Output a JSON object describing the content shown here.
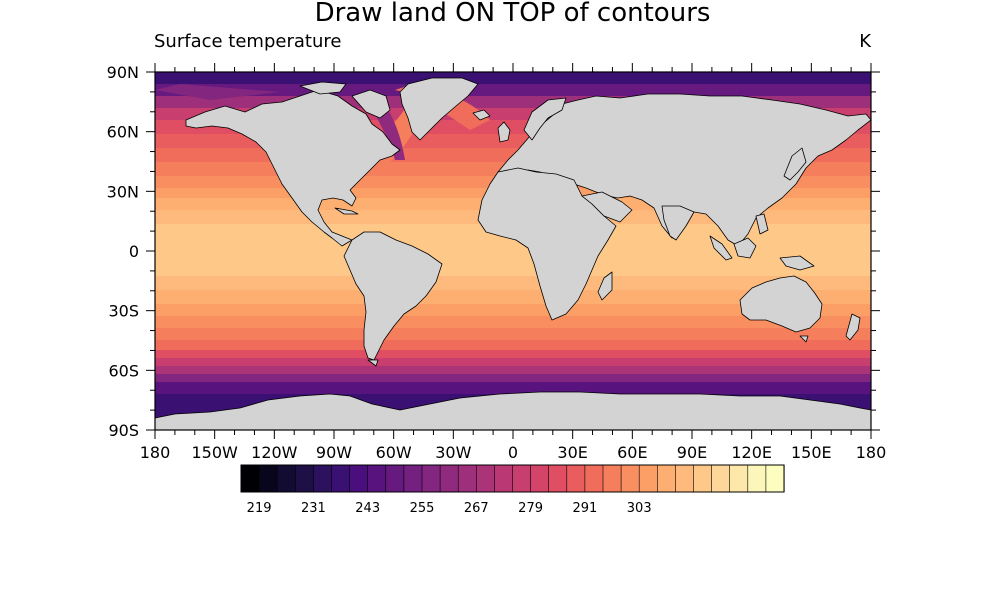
{
  "title": "Draw land ON TOP of contours",
  "left_string": "Surface temperature",
  "right_string": "K",
  "colors": {
    "land": "#d3d3d3",
    "coast": "#000000",
    "palette": [
      "#000004",
      "#07061c",
      "#120c33",
      "#1e1047",
      "#2b115e",
      "#3a1072",
      "#4a0f7d",
      "#58137e",
      "#661a80",
      "#732080",
      "#82267f",
      "#8f2a7e",
      "#9e2f7a",
      "#ab3377",
      "#ba3873",
      "#c83e6e",
      "#d44468",
      "#e04e63",
      "#ea5d5e",
      "#f06d5b",
      "#f57e5c",
      "#f98f61",
      "#fc9f67",
      "#fdaf71",
      "#feb97c",
      "#fec888",
      "#fdd79a",
      "#fde7a9",
      "#fcf6bb",
      "#fcfdbf"
    ]
  },
  "map": {
    "lon_ticks": [
      "180",
      "150W",
      "120W",
      "90W",
      "60W",
      "30W",
      "0",
      "30E",
      "60E",
      "90E",
      "120E",
      "150E",
      "180"
    ],
    "lat_ticks": [
      "90N",
      "60N",
      "30N",
      "0",
      "30S",
      "60S",
      "90S"
    ]
  },
  "colorbar": {
    "labels": [
      "219",
      "231",
      "243",
      "255",
      "267",
      "279",
      "291",
      "303"
    ]
  }
}
